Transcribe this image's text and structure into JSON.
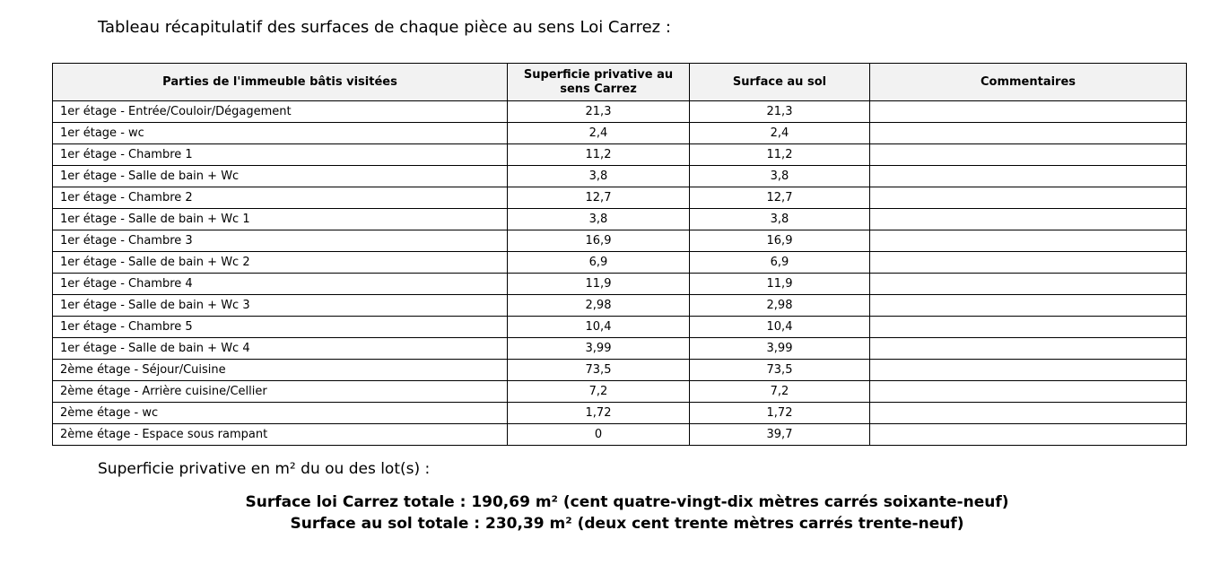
{
  "title": "Tableau récapitulatif des surfaces de chaque pièce au sens Loi Carrez :",
  "table": {
    "headers": [
      "Parties de l'immeuble bâtis visitées",
      "Superficie privative au sens Carrez",
      "Surface au sol",
      "Commentaires"
    ],
    "rows": [
      [
        "1er étage - Entrée/Couloir/Dégagement",
        "21,3",
        "21,3",
        ""
      ],
      [
        "1er étage - wc",
        "2,4",
        "2,4",
        ""
      ],
      [
        "1er étage - Chambre 1",
        "11,2",
        "11,2",
        ""
      ],
      [
        "1er étage - Salle de bain + Wc",
        "3,8",
        "3,8",
        ""
      ],
      [
        "1er étage - Chambre 2",
        "12,7",
        "12,7",
        ""
      ],
      [
        "1er étage - Salle de bain + Wc 1",
        "3,8",
        "3,8",
        ""
      ],
      [
        "1er étage - Chambre 3",
        "16,9",
        "16,9",
        ""
      ],
      [
        "1er étage - Salle de bain + Wc 2",
        "6,9",
        "6,9",
        ""
      ],
      [
        "1er étage - Chambre 4",
        "11,9",
        "11,9",
        ""
      ],
      [
        "1er étage - Salle de bain + Wc 3",
        "2,98",
        "2,98",
        ""
      ],
      [
        "1er étage - Chambre 5",
        "10,4",
        "10,4",
        ""
      ],
      [
        "1er étage - Salle de bain + Wc 4",
        "3,99",
        "3,99",
        ""
      ],
      [
        "2ème étage - Séjour/Cuisine",
        "73,5",
        "73,5",
        ""
      ],
      [
        "2ème étage - Arrière cuisine/Cellier",
        "7,2",
        "7,2",
        ""
      ],
      [
        "2ème étage - wc",
        "1,72",
        "1,72",
        ""
      ],
      [
        "2ème étage - Espace sous rampant",
        "0",
        "39,7",
        ""
      ]
    ]
  },
  "summary": {
    "label": "Superficie privative en m² du ou des lot(s) :",
    "carrez": "Surface loi Carrez totale : 190,69 m² (cent quatre-vingt-dix mètres carrés soixante-neuf)",
    "sol": "Surface au sol totale : 230,39 m² (deux cent trente mètres carrés trente-neuf)"
  }
}
